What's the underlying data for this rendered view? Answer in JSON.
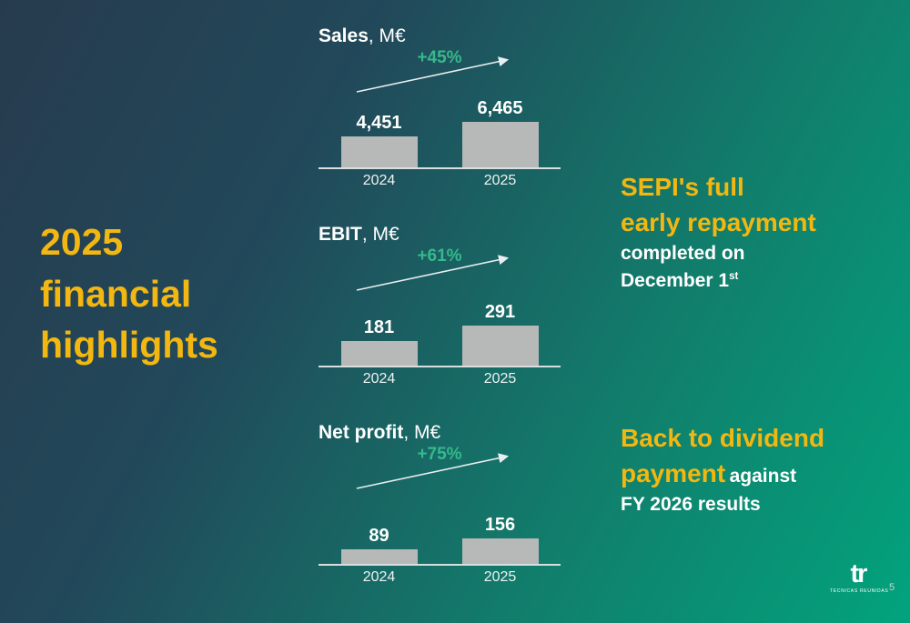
{
  "slide": {
    "left_title": "2025\nfinancial\nhighlights",
    "page_number": "5",
    "logo_mark": "tr",
    "logo_caption": "TECNICAS REUNIDAS"
  },
  "charts": [
    {
      "title_bold": "Sales",
      "title_suffix": ", M€",
      "growth": "+45%",
      "categories": [
        "2024",
        "2025"
      ],
      "value_labels": [
        "4,451",
        "6,465"
      ]
    },
    {
      "title_bold": "EBIT",
      "title_suffix": ", M€",
      "growth": "+61%",
      "categories": [
        "2024",
        "2025"
      ],
      "value_labels": [
        "181",
        "291"
      ]
    },
    {
      "title_bold": "Net profit",
      "title_suffix": ", M€",
      "growth": "+75%",
      "categories": [
        "2024",
        "2025"
      ],
      "value_labels": [
        "89",
        "156"
      ]
    }
  ],
  "chart_data": [
    {
      "type": "bar",
      "title": "Sales, M€",
      "categories": [
        "2024",
        "2025"
      ],
      "values": [
        4451,
        6465
      ],
      "growth_annotation": "+45%",
      "bar_color": "#b7b9b8",
      "legend": "none",
      "grid": false
    },
    {
      "type": "bar",
      "title": "EBIT, M€",
      "categories": [
        "2024",
        "2025"
      ],
      "values": [
        181,
        291
      ],
      "growth_annotation": "+61%",
      "bar_color": "#b7b9b8",
      "legend": "none",
      "grid": false
    },
    {
      "type": "bar",
      "title": "Net profit, M€",
      "categories": [
        "2024",
        "2025"
      ],
      "values": [
        89,
        156
      ],
      "growth_annotation": "+75%",
      "bar_color": "#b7b9b8",
      "legend": "none",
      "grid": false
    }
  ],
  "callouts": {
    "sepi": {
      "highlight_line1": "SEPI's full",
      "highlight_line2": "early repayment",
      "body_line1": "completed on",
      "body_line2": "December 1",
      "body_line2_sup": "st"
    },
    "dividend": {
      "highlight_line1": "Back to dividend",
      "highlight_line2": "payment",
      "body_inline": "against",
      "body_line2": "FY 2026 results"
    }
  },
  "colors": {
    "accent_yellow": "#f3b711",
    "growth_green": "#36b98c",
    "bar_gray": "#b7b9b8",
    "bg_dark_navy": "#273b4e",
    "bg_green": "#02a37d",
    "text_white": "#ffffff"
  }
}
